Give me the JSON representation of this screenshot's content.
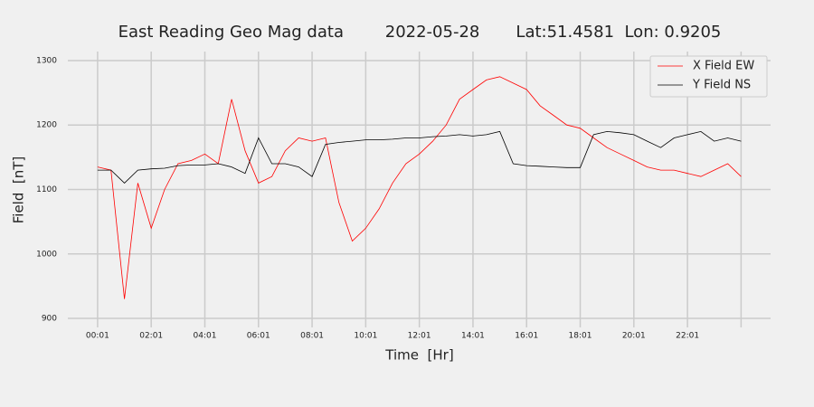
{
  "chart_data": {
    "type": "line",
    "title": "East Reading Geo Mag data        2022-05-28       Lat:51.4581  Lon: 0.9205",
    "x_label": "Time  [Hr]",
    "y_label": "Field  [nT]",
    "x": [
      0,
      0.5,
      1,
      1.5,
      2,
      2.5,
      3,
      3.5,
      4,
      4.5,
      5,
      5.5,
      6,
      6.5,
      7,
      7.5,
      8,
      8.5,
      9,
      9.5,
      10,
      10.5,
      11,
      11.5,
      12,
      12.5,
      13,
      13.5,
      14,
      14.5,
      15,
      15.5,
      16,
      16.5,
      17,
      17.5,
      18,
      18.5,
      19,
      19.5,
      20,
      20.5,
      21,
      21.5,
      22,
      22.5,
      23,
      23.5,
      24
    ],
    "series": [
      {
        "name": "X Field EW",
        "color": "#ff0000",
        "values": [
          1135,
          1130,
          930,
          1110,
          1040,
          1100,
          1140,
          1145,
          1155,
          1140,
          1240,
          1160,
          1110,
          1120,
          1160,
          1180,
          1175,
          1180,
          1080,
          1020,
          1040,
          1070,
          1110,
          1140,
          1155,
          1175,
          1200,
          1240,
          1255,
          1270,
          1275,
          1265,
          1255,
          1230,
          1215,
          1200,
          1195,
          1180,
          1165,
          1155,
          1145,
          1135,
          1130,
          1130,
          1125,
          1120,
          1130,
          1140,
          1120
        ]
      },
      {
        "name": "Y Field NS",
        "color": "#000000",
        "values": [
          1130,
          1130,
          1110,
          1130,
          1132,
          1133,
          1137,
          1138,
          1138,
          1140,
          1135,
          1125,
          1180,
          1140,
          1140,
          1135,
          1120,
          1170,
          1173,
          1175,
          1177,
          1177,
          1178,
          1180,
          1180,
          1182,
          1183,
          1185,
          1183,
          1185,
          1190,
          1140,
          1137,
          1136,
          1135,
          1134,
          1134,
          1185,
          1190,
          1188,
          1185,
          1175,
          1165,
          1180,
          1185,
          1190,
          1175,
          1180,
          1175
        ]
      }
    ],
    "xlim": [
      -1.11,
      25.1
    ],
    "xticks": [
      {
        "value": 0,
        "label": "00:01"
      },
      {
        "value": 2,
        "label": "02:01"
      },
      {
        "value": 4,
        "label": "04:01"
      },
      {
        "value": 6,
        "label": "06:01"
      },
      {
        "value": 8,
        "label": "08:01"
      },
      {
        "value": 10,
        "label": "10:01"
      },
      {
        "value": 12,
        "label": "12:01"
      },
      {
        "value": 14,
        "label": "14:01"
      },
      {
        "value": 16,
        "label": "16:01"
      },
      {
        "value": 18,
        "label": "18:01"
      },
      {
        "value": 20,
        "label": "20:01"
      },
      {
        "value": 22,
        "label": "22:01"
      },
      {
        "value": 24,
        "label": null
      }
    ],
    "ylim": [
      886,
      1314
    ],
    "yticks": [
      900,
      1000,
      1100,
      1200,
      1300
    ],
    "grid": true,
    "legend": "upper right"
  }
}
